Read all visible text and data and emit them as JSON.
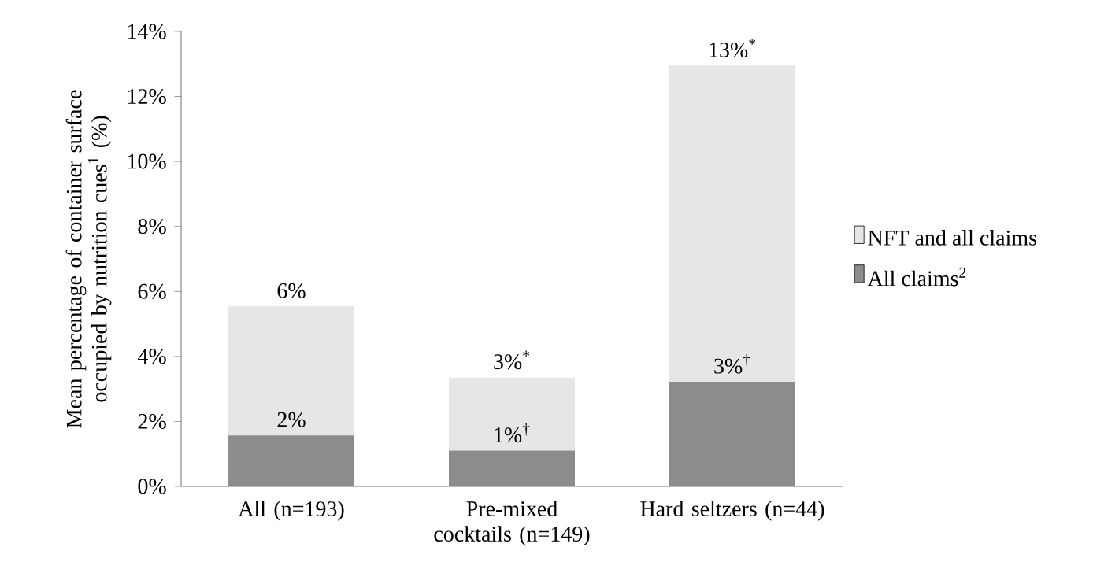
{
  "chart_data": {
    "type": "bar",
    "stacked": true,
    "ylabel": "Mean percentage of container surface occupied by nutrition cues$^{1}$ (%)",
    "categories": [
      "All (n=193)",
      "Pre-mixed cocktails (n=149)",
      "Hard seltzers (n=44)"
    ],
    "series": [
      {
        "name": "All claims$^{2}$",
        "color": "#8c8c8c",
        "values": [
          1.57,
          1.1,
          3.22
        ],
        "value_labels": [
          "2%",
          "1%$^{†}$",
          "3%$^{†}$"
        ]
      },
      {
        "name": "NFT and all claims",
        "color": "#e6e6e6",
        "values": [
          3.97,
          2.25,
          9.73
        ]
      }
    ],
    "totals": [
      "6%",
      "3%$^{*}$",
      "13%$^{*}$"
    ],
    "ylim": [
      0,
      14
    ],
    "yticks": [
      {
        "value": 0,
        "label": "0%"
      },
      {
        "value": 2,
        "label": "2%"
      },
      {
        "value": 4,
        "label": "4%"
      },
      {
        "value": 6,
        "label": "6%"
      },
      {
        "value": 8,
        "label": "8%"
      },
      {
        "value": 10,
        "label": "10%"
      },
      {
        "value": 12,
        "label": "12%"
      },
      {
        "value": 14,
        "label": "14%"
      }
    ],
    "legend": "right",
    "grid": false
  }
}
